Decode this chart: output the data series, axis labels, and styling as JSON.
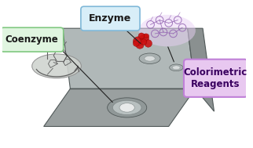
{
  "background_color": "#ffffff",
  "labels": {
    "coenzyme": "Coenzyme",
    "enzyme": "Enzyme",
    "colorimetric": "Colorimetric\nReagents"
  },
  "box_colors": {
    "coenzyme_face": "#e0f5e0",
    "coenzyme_edge": "#80c880",
    "enzyme_face": "#d8eef8",
    "enzyme_edge": "#80b8d8",
    "colorimetric_face": "#e8c8f0",
    "colorimetric_edge": "#c080d8"
  },
  "paper_dark": "#8a9090",
  "paper_mid": "#9aa0a0",
  "paper_light": "#b0b8b8",
  "paper_edge": "#505858",
  "spot_white": "#e8e8e8",
  "spot_ring": "#a0a8a8",
  "line_color": "#202020",
  "enzyme_red": "#cc1010",
  "molecule_gray": "#606060",
  "colorimetric_purple": "#9060b0"
}
